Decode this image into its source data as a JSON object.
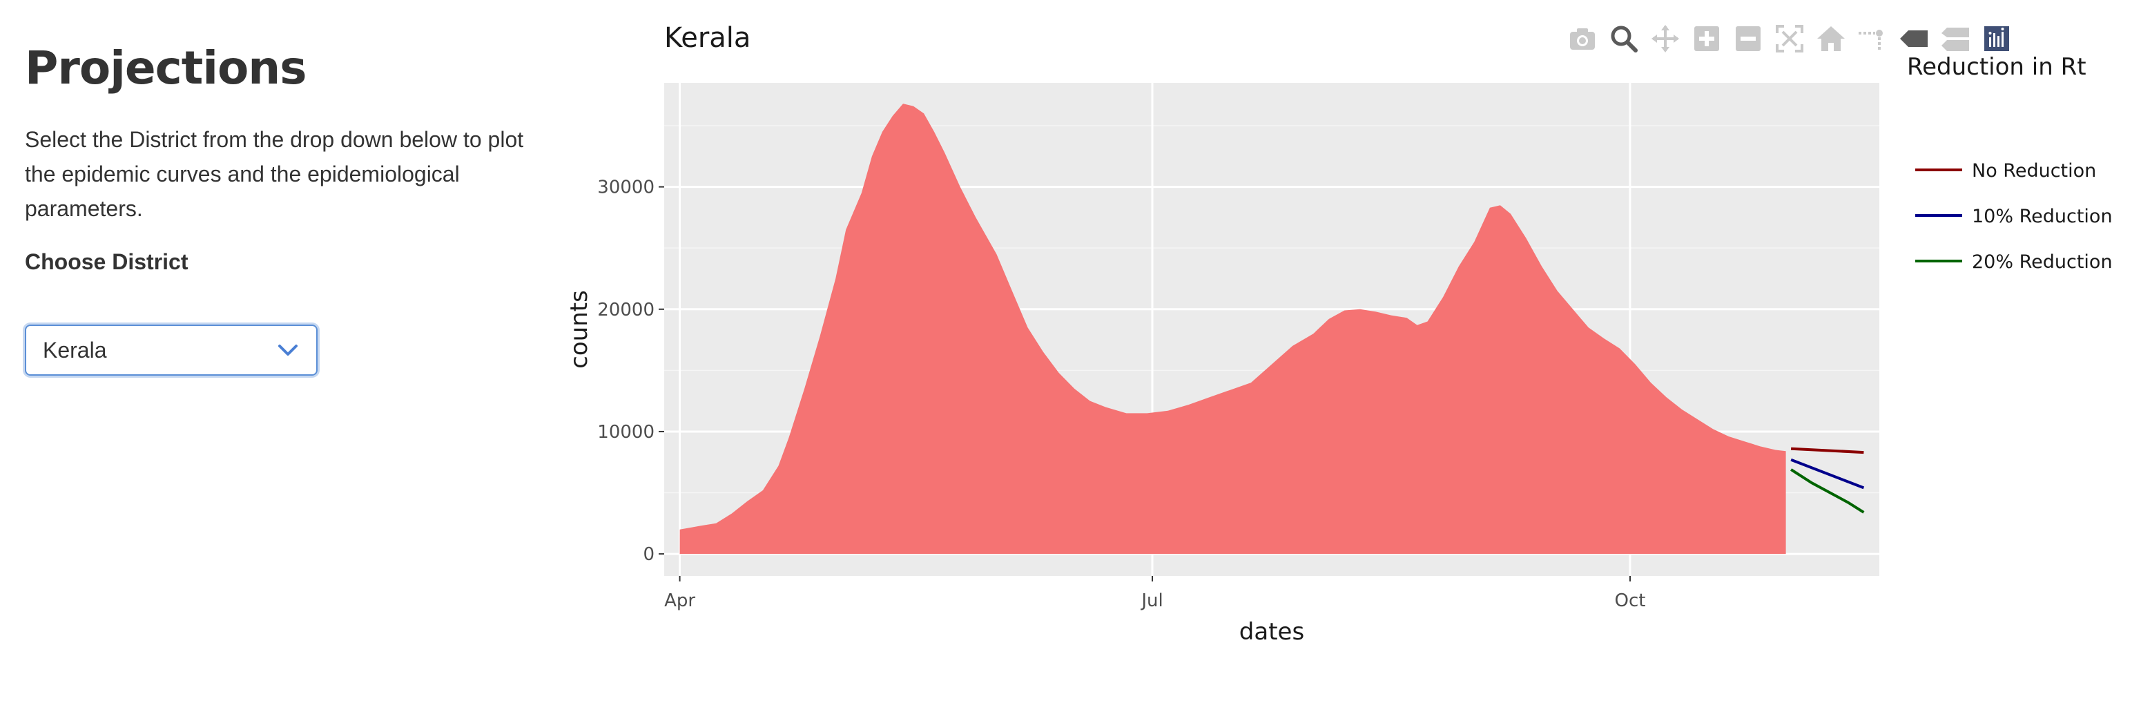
{
  "sidebar": {
    "title": "Projections",
    "description": "Select the District from the drop down below to plot the epidemic curves and the epidemiological parameters.",
    "choose_label": "Choose District",
    "selected_district": "Kerala"
  },
  "modebar": {
    "icons": [
      "camera-icon",
      "zoom-icon",
      "pan-icon",
      "zoom-in-icon",
      "zoom-out-icon",
      "autoscale-icon",
      "home-icon",
      "spike-lines-icon",
      "hover-closest-icon",
      "hover-compare-icon",
      "plotly-logo-icon"
    ],
    "active": "zoom-icon"
  },
  "chart_data": {
    "type": "area",
    "title": "Kerala",
    "xlabel": "dates",
    "ylabel": "counts",
    "x_ticks": [
      "Apr",
      "Jul",
      "Oct"
    ],
    "y_ticks": [
      0,
      10000,
      20000,
      30000
    ],
    "ylim": [
      -1800,
      38500
    ],
    "xlim": [
      "2021-03-29",
      "2021-11-18"
    ],
    "grid": true,
    "legend_title": "Reduction in Rt",
    "legend_position": "right",
    "colors": {
      "area": "#f57373",
      "panel": "#ebebeb",
      "no_reduction": "#8b0000",
      "ten_reduction": "#00008b",
      "twenty_reduction": "#006400"
    },
    "area_series": {
      "points": [
        [
          "2021-04-01",
          2000
        ],
        [
          "2021-04-05",
          2300
        ],
        [
          "2021-04-08",
          2500
        ],
        [
          "2021-04-11",
          3300
        ],
        [
          "2021-04-14",
          4300
        ],
        [
          "2021-04-17",
          5200
        ],
        [
          "2021-04-20",
          7200
        ],
        [
          "2021-04-22",
          9500
        ],
        [
          "2021-04-25",
          13500
        ],
        [
          "2021-04-28",
          17800
        ],
        [
          "2021-05-01",
          22500
        ],
        [
          "2021-05-03",
          26500
        ],
        [
          "2021-05-06",
          29500
        ],
        [
          "2021-05-08",
          32500
        ],
        [
          "2021-05-10",
          34500
        ],
        [
          "2021-05-12",
          35800
        ],
        [
          "2021-05-14",
          36800
        ],
        [
          "2021-05-16",
          36600
        ],
        [
          "2021-05-18",
          36000
        ],
        [
          "2021-05-20",
          34500
        ],
        [
          "2021-05-22",
          32800
        ],
        [
          "2021-05-25",
          30000
        ],
        [
          "2021-05-28",
          27500
        ],
        [
          "2021-06-01",
          24500
        ],
        [
          "2021-06-04",
          21500
        ],
        [
          "2021-06-07",
          18500
        ],
        [
          "2021-06-10",
          16500
        ],
        [
          "2021-06-13",
          14800
        ],
        [
          "2021-06-16",
          13500
        ],
        [
          "2021-06-19",
          12500
        ],
        [
          "2021-06-22",
          12000
        ],
        [
          "2021-06-26",
          11500
        ],
        [
          "2021-06-30",
          11500
        ],
        [
          "2021-07-04",
          11700
        ],
        [
          "2021-07-08",
          12200
        ],
        [
          "2021-07-12",
          12800
        ],
        [
          "2021-07-16",
          13400
        ],
        [
          "2021-07-20",
          14000
        ],
        [
          "2021-07-24",
          15500
        ],
        [
          "2021-07-28",
          17000
        ],
        [
          "2021-08-01",
          18000
        ],
        [
          "2021-08-04",
          19200
        ],
        [
          "2021-08-07",
          19900
        ],
        [
          "2021-08-10",
          20000
        ],
        [
          "2021-08-13",
          19800
        ],
        [
          "2021-08-16",
          19500
        ],
        [
          "2021-08-19",
          19300
        ],
        [
          "2021-08-21",
          18700
        ],
        [
          "2021-08-23",
          19000
        ],
        [
          "2021-08-26",
          21000
        ],
        [
          "2021-08-29",
          23500
        ],
        [
          "2021-09-01",
          25500
        ],
        [
          "2021-09-04",
          28300
        ],
        [
          "2021-09-06",
          28500
        ],
        [
          "2021-09-08",
          27800
        ],
        [
          "2021-09-11",
          25800
        ],
        [
          "2021-09-14",
          23500
        ],
        [
          "2021-09-17",
          21500
        ],
        [
          "2021-09-20",
          20000
        ],
        [
          "2021-09-23",
          18500
        ],
        [
          "2021-09-26",
          17600
        ],
        [
          "2021-09-29",
          16800
        ],
        [
          "2021-10-02",
          15500
        ],
        [
          "2021-10-05",
          14000
        ],
        [
          "2021-10-08",
          12800
        ],
        [
          "2021-10-11",
          11800
        ],
        [
          "2021-10-14",
          11000
        ],
        [
          "2021-10-17",
          10200
        ],
        [
          "2021-10-20",
          9600
        ],
        [
          "2021-10-23",
          9200
        ],
        [
          "2021-10-26",
          8800
        ],
        [
          "2021-10-29",
          8500
        ],
        [
          "2021-10-31",
          8400
        ]
      ]
    },
    "series": [
      {
        "name": "No Reduction",
        "x": [
          "2021-11-01",
          "2021-11-15"
        ],
        "y": [
          8600,
          8300
        ]
      },
      {
        "name": "10% Reduction",
        "x": [
          "2021-11-01",
          "2021-11-15"
        ],
        "y": [
          7700,
          5400
        ]
      },
      {
        "name": "20% Reduction",
        "x": [
          "2021-11-01",
          "2021-11-05",
          "2021-11-12",
          "2021-11-15"
        ],
        "y": [
          6900,
          5800,
          4200,
          3400
        ]
      }
    ]
  }
}
